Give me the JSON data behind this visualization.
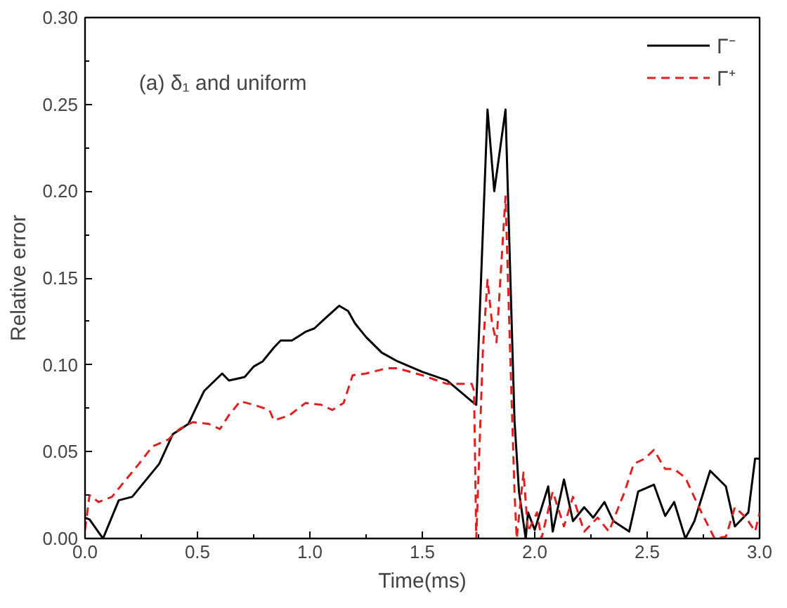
{
  "chart_data": {
    "type": "line",
    "xlabel": "Time(ms)",
    "ylabel": "Relative error",
    "annotations": [
      "(a) δ₁ and uniform"
    ],
    "xlim": [
      0,
      3
    ],
    "ylim": [
      0,
      0.3
    ],
    "xticks": [
      {
        "value": 0,
        "label": "0.0"
      },
      {
        "value": 0.5,
        "label": "0.5"
      },
      {
        "value": 1,
        "label": "1.0"
      },
      {
        "value": 1.5,
        "label": "1.5"
      },
      {
        "value": 2,
        "label": "2.0"
      },
      {
        "value": 2.5,
        "label": "2.5"
      },
      {
        "value": 3,
        "label": "3.0"
      }
    ],
    "yticks": [
      {
        "value": 0,
        "label": "0.00"
      },
      {
        "value": 0.05,
        "label": "0.05"
      },
      {
        "value": 0.1,
        "label": "0.10"
      },
      {
        "value": 0.15,
        "label": "0.15"
      },
      {
        "value": 0.2,
        "label": "0.20"
      },
      {
        "value": 0.25,
        "label": "0.25"
      },
      {
        "value": 0.3,
        "label": "0.30"
      }
    ],
    "grid": false,
    "legend": "top right",
    "series": [
      {
        "name": "Γ⁻",
        "color": "#000000",
        "line_style": "solid",
        "x": [
          0,
          0.02,
          0.08,
          0.15,
          0.21,
          0.33,
          0.39,
          0.46,
          0.5,
          0.53,
          0.61,
          0.64,
          0.71,
          0.75,
          0.79,
          0.84,
          0.87,
          0.92,
          0.98,
          1.02,
          1.07,
          1.13,
          1.17,
          1.2,
          1.25,
          1.32,
          1.39,
          1.5,
          1.61,
          1.72,
          1.74,
          1.79,
          1.82,
          1.87,
          1.91,
          1.93,
          1.96,
          1.97,
          2.0,
          2.06,
          2.08,
          2.13,
          2.17,
          2.22,
          2.26,
          2.31,
          2.35,
          2.42,
          2.46,
          2.53,
          2.58,
          2.62,
          2.67,
          2.71,
          2.78,
          2.85,
          2.89,
          2.95,
          2.98,
          3.0
        ],
        "values": [
          0.012,
          0.011,
          0.0,
          0.022,
          0.024,
          0.043,
          0.06,
          0.066,
          0.077,
          0.085,
          0.095,
          0.091,
          0.093,
          0.099,
          0.102,
          0.11,
          0.114,
          0.114,
          0.119,
          0.121,
          0.127,
          0.134,
          0.131,
          0.124,
          0.116,
          0.107,
          0.102,
          0.096,
          0.091,
          0.079,
          0.077,
          0.247,
          0.2,
          0.247,
          0.068,
          0.027,
          0.0,
          0.015,
          0.005,
          0.03,
          0.004,
          0.034,
          0.01,
          0.018,
          0.012,
          0.021,
          0.01,
          0.004,
          0.027,
          0.031,
          0.013,
          0.021,
          0.0,
          0.01,
          0.039,
          0.03,
          0.007,
          0.015,
          0.046,
          0.046
        ]
      },
      {
        "name": "Γ⁺",
        "color": "#e02020",
        "line_style": "dashed",
        "x": [
          0,
          0.02,
          0.06,
          0.12,
          0.17,
          0.24,
          0.3,
          0.37,
          0.42,
          0.48,
          0.55,
          0.6,
          0.64,
          0.69,
          0.75,
          0.82,
          0.84,
          0.91,
          0.98,
          1.05,
          1.1,
          1.15,
          1.19,
          1.25,
          1.34,
          1.39,
          1.5,
          1.61,
          1.72,
          1.73,
          1.74,
          1.77,
          1.79,
          1.81,
          1.83,
          1.87,
          1.89,
          1.91,
          1.92,
          1.95,
          1.97,
          2.01,
          2.03,
          2.08,
          2.13,
          2.17,
          2.22,
          2.28,
          2.33,
          2.4,
          2.44,
          2.49,
          2.53,
          2.58,
          2.62,
          2.67,
          2.73,
          2.8,
          2.85,
          2.89,
          2.94,
          2.98,
          3.0
        ],
        "values": [
          0.005,
          0.025,
          0.021,
          0.024,
          0.032,
          0.043,
          0.053,
          0.057,
          0.063,
          0.067,
          0.066,
          0.063,
          0.071,
          0.079,
          0.077,
          0.074,
          0.068,
          0.071,
          0.078,
          0.077,
          0.074,
          0.078,
          0.094,
          0.095,
          0.098,
          0.098,
          0.094,
          0.089,
          0.089,
          0.085,
          0.0,
          0.11,
          0.149,
          0.124,
          0.113,
          0.197,
          0.11,
          0.027,
          0.0,
          0.038,
          0.004,
          0.015,
          0.0,
          0.027,
          0.007,
          0.024,
          0.004,
          0.012,
          0.004,
          0.027,
          0.043,
          0.046,
          0.051,
          0.04,
          0.04,
          0.035,
          0.018,
          0.0,
          0.001,
          0.018,
          0.012,
          0.004,
          0.015
        ]
      }
    ]
  }
}
